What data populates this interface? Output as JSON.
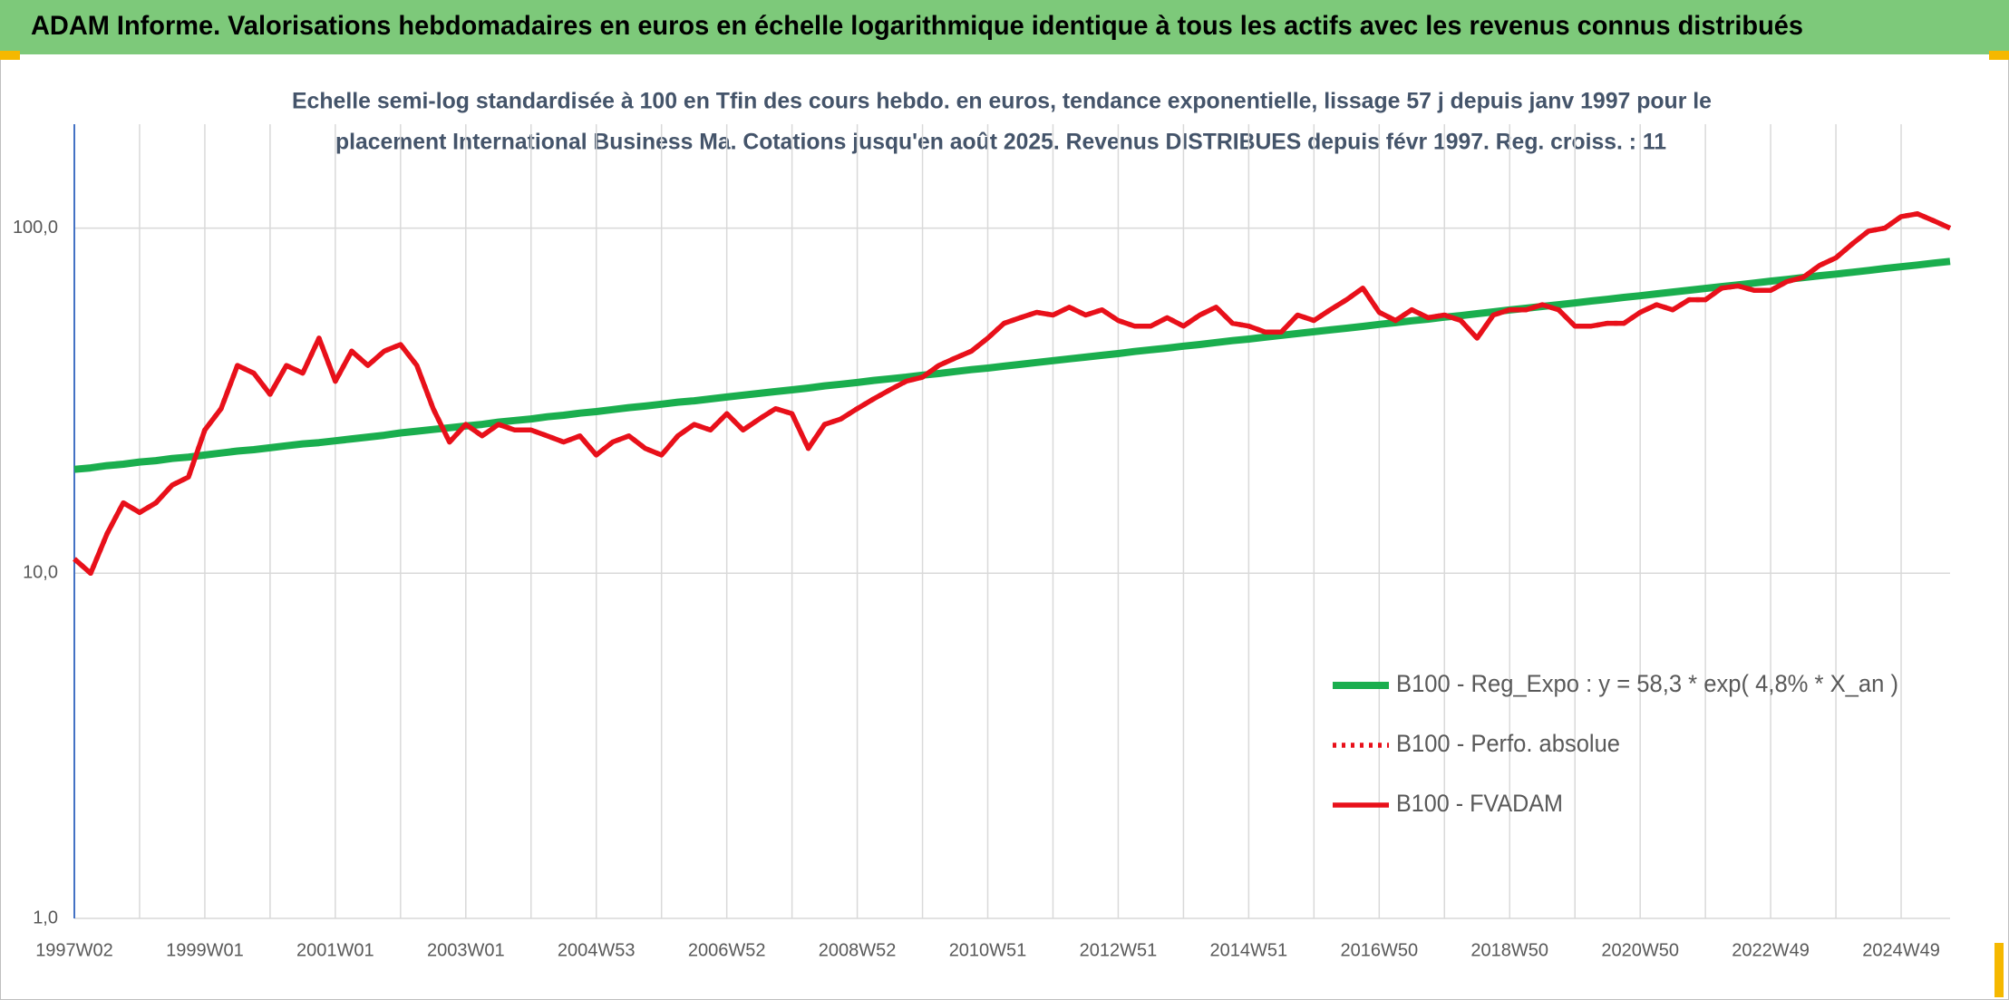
{
  "header": {
    "title": "ADAM Informe. Valorisations hebdomadaires en euros en échelle logarithmique identique à tous les actifs avec les revenus connus distribués"
  },
  "chart_data": {
    "type": "line",
    "subtitle": [
      "Echelle semi-log standardisée à 100 en Tfin des cours hebdo. en euros, tendance exponentielle, lissage 57 j depuis janv 1997 pour le",
      "placement International Business Ma. Cotations jusqu'en août 2025. Revenus DISTRIBUES depuis févr 1997. Reg. croiss. : 11"
    ],
    "log_scale": true,
    "grid": true,
    "legend": "right",
    "ylim": [
      1,
      200
    ],
    "yticks": [
      {
        "value": 1,
        "label": "1,0"
      },
      {
        "value": 10,
        "label": "10,0"
      },
      {
        "value": 100,
        "label": "100,0"
      }
    ],
    "categories": [
      "1997W02",
      null,
      null,
      null,
      null,
      null,
      null,
      null,
      "1999W01",
      null,
      null,
      null,
      null,
      null,
      null,
      null,
      "2001W01",
      null,
      null,
      null,
      null,
      null,
      null,
      null,
      "2003W01",
      null,
      null,
      null,
      null,
      null,
      null,
      null,
      "2004W53",
      null,
      null,
      null,
      null,
      null,
      null,
      null,
      "2006W52",
      null,
      null,
      null,
      null,
      null,
      null,
      null,
      "2008W52",
      null,
      null,
      null,
      null,
      null,
      null,
      null,
      "2010W51",
      null,
      null,
      null,
      null,
      null,
      null,
      null,
      "2012W51",
      null,
      null,
      null,
      null,
      null,
      null,
      null,
      "2014W51",
      null,
      null,
      null,
      null,
      null,
      null,
      null,
      "2016W50",
      null,
      null,
      null,
      null,
      null,
      null,
      null,
      "2018W50",
      null,
      null,
      null,
      null,
      null,
      null,
      null,
      "2020W50",
      null,
      null,
      null,
      null,
      null,
      null,
      null,
      "2022W49",
      null,
      null,
      null,
      null,
      null,
      null,
      null,
      "2024W49",
      null,
      null,
      null
    ],
    "series": [
      {
        "name": "B100 - Reg_Expo : y = 58,3 * exp( 4,8% * X_an )",
        "color": "#1aae4e",
        "style": "solid",
        "values": [
          20.0,
          20.2,
          20.5,
          20.7,
          21.0,
          21.2,
          21.5,
          21.7,
          22.0,
          22.3,
          22.6,
          22.8,
          23.1,
          23.4,
          23.7,
          23.9,
          24.2,
          24.5,
          24.8,
          25.1,
          25.5,
          25.8,
          26.1,
          26.4,
          26.7,
          27.0,
          27.4,
          27.7,
          28.0,
          28.4,
          28.7,
          29.1,
          29.4,
          29.8,
          30.2,
          30.5,
          30.9,
          31.3,
          31.6,
          32.0,
          32.4,
          32.8,
          33.2,
          33.6,
          34.0,
          34.4,
          34.9,
          35.3,
          35.7,
          36.2,
          36.6,
          37.0,
          37.5,
          37.9,
          38.4,
          38.9,
          39.3,
          39.8,
          40.3,
          40.8,
          41.3,
          41.8,
          42.3,
          42.8,
          43.3,
          43.9,
          44.4,
          44.9,
          45.5,
          46.0,
          46.6,
          47.2,
          47.7,
          48.3,
          48.9,
          49.5,
          50.1,
          50.7,
          51.3,
          51.9,
          52.6,
          53.2,
          53.9,
          54.5,
          55.2,
          55.8,
          56.5,
          57.2,
          57.9,
          58.6,
          59.3,
          60.0,
          60.7,
          61.5,
          62.2,
          63.0,
          63.7,
          64.5,
          65.3,
          66.1,
          66.9,
          67.7,
          68.5,
          69.3,
          70.2,
          71.0,
          71.9,
          72.8,
          73.6,
          74.5,
          75.4,
          76.4,
          77.3,
          78.2,
          79.2,
          80.1
        ]
      },
      {
        "name": "B100 - Perfo. absolue",
        "color": "#e8101a",
        "style": "dotted",
        "values": [
          11,
          10,
          13,
          16,
          15,
          16,
          18,
          19,
          26,
          30,
          40,
          38,
          33,
          40,
          38,
          48,
          36,
          44,
          40,
          44,
          46,
          40,
          30,
          24,
          27,
          25,
          27,
          26,
          26,
          25,
          24,
          25,
          22,
          24,
          25,
          23,
          22,
          25,
          27,
          26,
          29,
          26,
          28,
          30,
          29,
          23,
          27,
          28,
          30,
          32,
          34,
          36,
          37,
          40,
          42,
          44,
          48,
          53,
          55,
          57,
          56,
          59,
          56,
          58,
          54,
          52,
          52,
          55,
          52,
          56,
          59,
          53,
          52,
          50,
          50,
          56,
          54,
          58,
          62,
          67,
          57,
          54,
          58,
          55,
          56,
          54,
          48,
          56,
          58,
          58,
          60,
          58,
          52,
          52,
          53,
          53,
          57,
          60,
          58,
          62,
          62,
          67,
          68,
          66,
          66,
          70,
          72,
          78,
          82,
          90,
          98,
          100,
          108,
          110,
          105,
          100
        ]
      },
      {
        "name": "B100 - FVADAM",
        "color": "#e8101a",
        "style": "solid",
        "values": [
          11,
          10,
          13,
          16,
          15,
          16,
          18,
          19,
          26,
          30,
          40,
          38,
          33,
          40,
          38,
          48,
          36,
          44,
          40,
          44,
          46,
          40,
          30,
          24,
          27,
          25,
          27,
          26,
          26,
          25,
          24,
          25,
          22,
          24,
          25,
          23,
          22,
          25,
          27,
          26,
          29,
          26,
          28,
          30,
          29,
          23,
          27,
          28,
          30,
          32,
          34,
          36,
          37,
          40,
          42,
          44,
          48,
          53,
          55,
          57,
          56,
          59,
          56,
          58,
          54,
          52,
          52,
          55,
          52,
          56,
          59,
          53,
          52,
          50,
          50,
          56,
          54,
          58,
          62,
          67,
          57,
          54,
          58,
          55,
          56,
          54,
          48,
          56,
          58,
          58,
          60,
          58,
          52,
          52,
          53,
          53,
          57,
          60,
          58,
          62,
          62,
          67,
          68,
          66,
          66,
          70,
          72,
          78,
          82,
          90,
          98,
          100,
          108,
          110,
          105,
          100
        ]
      }
    ]
  }
}
